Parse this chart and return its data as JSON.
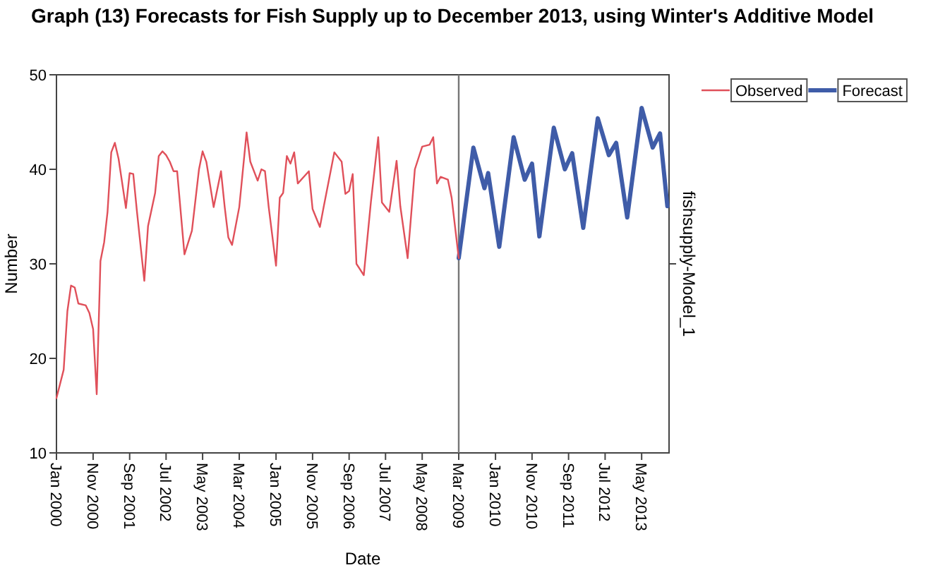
{
  "chart_data": {
    "type": "line",
    "title": "Graph (13) Forecasts for Fish Supply up to December 2013, using Winter's Additive Model",
    "xlabel": "Date",
    "ylabel": "Number",
    "annotations": [
      "fishsupply-Model_1"
    ],
    "xlim": [
      "2000-01",
      "2013-12-15"
    ],
    "ylim": [
      10,
      50
    ],
    "yticks": [
      10,
      20,
      30,
      40,
      50
    ],
    "xticks": [
      {
        "value": "2000-01",
        "label": "Jan 2000"
      },
      {
        "value": "2000-11",
        "label": "Nov 2000"
      },
      {
        "value": "2001-09",
        "label": "Sep 2001"
      },
      {
        "value": "2002-07",
        "label": "Jul 2002"
      },
      {
        "value": "2003-05",
        "label": "May 2003"
      },
      {
        "value": "2004-03",
        "label": "Mar 2004"
      },
      {
        "value": "2005-01",
        "label": "Jan 2005"
      },
      {
        "value": "2005-11",
        "label": "Nov 2005"
      },
      {
        "value": "2006-09",
        "label": "Sep 2006"
      },
      {
        "value": "2007-07",
        "label": "Jul 2007"
      },
      {
        "value": "2008-05",
        "label": "May 2008"
      },
      {
        "value": "2009-03",
        "label": "Mar 2009"
      },
      {
        "value": "2010-01",
        "label": "Jan 2010"
      },
      {
        "value": "2010-11",
        "label": "Nov 2010"
      },
      {
        "value": "2011-09",
        "label": "Sep 2011"
      },
      {
        "value": "2012-07",
        "label": "Jul 2012"
      },
      {
        "value": "2013-05",
        "label": "May 2013"
      }
    ],
    "grid": false,
    "legend": "top right",
    "marker": "none",
    "line_style": "solid",
    "ref_lines": [
      {
        "axis": "x",
        "value": "2009-03",
        "color": "#777777"
      }
    ],
    "series": [
      {
        "name": "Observed",
        "color": "#e0505a",
        "x": [
          "2000-01",
          "2000-03",
          "2000-04",
          "2000-05",
          "2000-06",
          "2000-07",
          "2000-09",
          "2000-10",
          "2000-11",
          "2000-12",
          "2001-01",
          "2001-02",
          "2001-03",
          "2001-04",
          "2001-05",
          "2001-06",
          "2001-08",
          "2001-09",
          "2001-10",
          "2001-11",
          "2002-01",
          "2002-02",
          "2002-04",
          "2002-05",
          "2002-06",
          "2002-07",
          "2002-08",
          "2002-09",
          "2002-10",
          "2002-12",
          "2003-02",
          "2003-04",
          "2003-05",
          "2003-06",
          "2003-08",
          "2003-10",
          "2003-11",
          "2003-12",
          "2004-01",
          "2004-03",
          "2004-05",
          "2004-06",
          "2004-08",
          "2004-09",
          "2004-10",
          "2004-11",
          "2005-01",
          "2005-02",
          "2005-03",
          "2005-04",
          "2005-05",
          "2005-06",
          "2005-07",
          "2005-10",
          "2005-11",
          "2006-01",
          "2006-02",
          "2006-05",
          "2006-07",
          "2006-08",
          "2006-09",
          "2006-10",
          "2006-11",
          "2007-01",
          "2007-03",
          "2007-05",
          "2007-06",
          "2007-08",
          "2007-10",
          "2007-11",
          "2008-01",
          "2008-03",
          "2008-05",
          "2008-07",
          "2008-08",
          "2008-09",
          "2008-10",
          "2008-12",
          "2009-01",
          "2009-03"
        ],
        "values": [
          15.8,
          18.8,
          25.0,
          27.7,
          27.5,
          25.8,
          25.6,
          24.8,
          23.1,
          16.2,
          30.3,
          32.3,
          35.5,
          41.8,
          42.8,
          41.1,
          35.9,
          39.6,
          39.5,
          35.5,
          28.2,
          34.0,
          37.5,
          41.4,
          41.9,
          41.5,
          40.8,
          39.8,
          39.8,
          31.0,
          33.5,
          40.0,
          41.9,
          40.8,
          36.0,
          39.8,
          36.0,
          32.8,
          32.0,
          36.0,
          43.9,
          40.8,
          38.8,
          40.0,
          39.8,
          36.0,
          29.8,
          37.0,
          37.5,
          41.4,
          40.6,
          41.8,
          38.5,
          39.8,
          35.8,
          33.9,
          36.0,
          41.8,
          40.8,
          37.4,
          37.7,
          39.5,
          30.0,
          28.8,
          36.5,
          43.4,
          36.5,
          35.5,
          40.9,
          36.1,
          30.6,
          40.0,
          42.4,
          42.6,
          43.4,
          38.5,
          39.2,
          38.9,
          37.0,
          30.6
        ]
      },
      {
        "name": "Forecast",
        "color": "#3f5ca8",
        "x": [
          "2009-03",
          "2009-07",
          "2009-10",
          "2009-11",
          "2010-02",
          "2010-06",
          "2010-09",
          "2010-11",
          "2011-01",
          "2011-05",
          "2011-08",
          "2011-10",
          "2012-01",
          "2012-05",
          "2012-08",
          "2012-10",
          "2013-01",
          "2013-05",
          "2013-08",
          "2013-10",
          "2013-12"
        ],
        "values": [
          30.6,
          42.3,
          38.0,
          39.6,
          31.8,
          43.4,
          38.9,
          40.6,
          32.9,
          44.4,
          40.0,
          41.7,
          33.8,
          45.4,
          41.5,
          42.8,
          34.9,
          46.5,
          42.3,
          43.8,
          36.1
        ]
      }
    ]
  }
}
